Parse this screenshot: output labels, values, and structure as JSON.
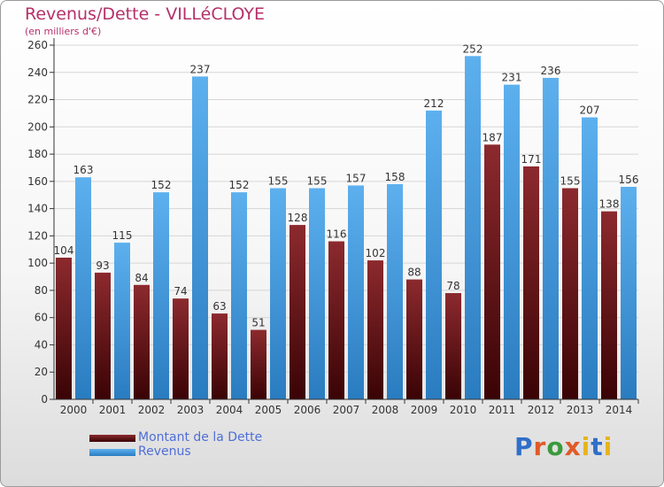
{
  "header": {
    "title": "Revenus/Dette - VILLéCLOYE",
    "subtitle": "(en milliers d'€)"
  },
  "colors": {
    "debt": "#7a1f24",
    "debt_dark": "#3d0406",
    "revenue": "#55a7e6",
    "revenue_dark": "#2b7fc2",
    "axis": "#333333",
    "grid": "#d6d6d6"
  },
  "chart_data": {
    "type": "bar",
    "categories": [
      "2000",
      "2001",
      "2002",
      "2003",
      "2004",
      "2005",
      "2006",
      "2007",
      "2008",
      "2009",
      "2010",
      "2011",
      "2012",
      "2013",
      "2014"
    ],
    "series": [
      {
        "name": "Montant de la Dette",
        "values": [
          104,
          93,
          84,
          74,
          63,
          51,
          128,
          116,
          102,
          88,
          78,
          187,
          171,
          155,
          138
        ]
      },
      {
        "name": "Revenus",
        "values": [
          163,
          115,
          152,
          237,
          152,
          155,
          155,
          157,
          158,
          212,
          252,
          231,
          236,
          207,
          156
        ]
      }
    ],
    "value_labels": [
      [
        "104",
        "93",
        "84",
        "74",
        "63",
        "51",
        "128",
        "116",
        "102",
        "88",
        "78",
        "187",
        "171",
        "155",
        "138"
      ],
      [
        "163",
        "115",
        "152",
        "237",
        "152",
        "155",
        "155",
        "157",
        "158",
        "212",
        "252",
        "231",
        "236",
        "207",
        "156"
      ]
    ],
    "yticks": [
      "0",
      "20",
      "40",
      "60",
      "80",
      "100",
      "120",
      "140",
      "160",
      "180",
      "200",
      "220",
      "240",
      "260"
    ],
    "ylim": [
      0,
      260
    ],
    "grid": true,
    "legend_position": "bottom-left"
  },
  "legend": {
    "items": [
      {
        "label": "Montant de la Dette"
      },
      {
        "label": "Revenus"
      }
    ]
  },
  "logo": {
    "text": "Proxiti"
  }
}
